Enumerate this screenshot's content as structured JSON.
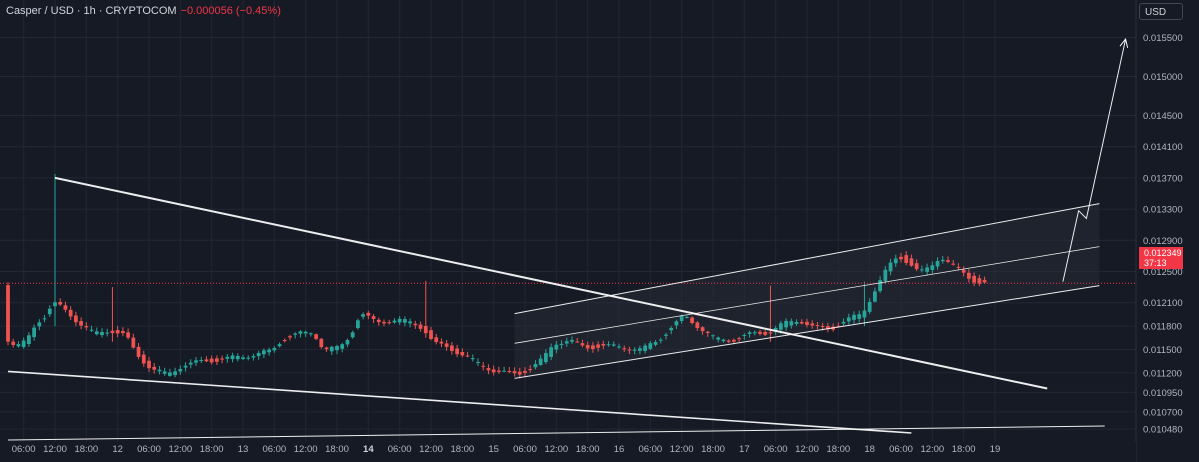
{
  "header": {
    "symbol": "Casper / USD",
    "interval": "1h",
    "exchange": "CRYPTOCOM",
    "change": "−0.000056 (−0.45%)"
  },
  "currency_label": "USD",
  "last_price": {
    "price": "0.012349",
    "countdown": "37:13"
  },
  "colors": {
    "background": "#161a25",
    "up": "#26a69a",
    "down": "#ef5350",
    "grid": "#232734",
    "axis_text": "#b2b5be",
    "drawing": "#ffffff",
    "price_line": "#f23645",
    "channel_fill": "#2a2e39"
  },
  "chart_data": {
    "type": "candlestick",
    "title": "",
    "y_axis": {
      "position": "right",
      "range": [
        0.01034,
        0.01575
      ],
      "ticks": [
        "0.015500",
        "0.015000",
        "0.014500",
        "0.014100",
        "0.013700",
        "0.013300",
        "0.012900",
        "0.012500",
        "0.012100",
        "0.011800",
        "0.011500",
        "0.011200",
        "0.010950",
        "0.010700",
        "0.010480"
      ]
    },
    "x_axis": {
      "range": [
        "10 03:00",
        "19 03:00"
      ],
      "ticks": [
        {
          "t": "10 06:00",
          "label": "06:00"
        },
        {
          "t": "10 12:00",
          "label": "12:00"
        },
        {
          "t": "10 18:00",
          "label": "18:00"
        },
        {
          "t": "11 00:00",
          "label": "12"
        },
        {
          "t": "11 06:00",
          "label": "06:00"
        },
        {
          "t": "11 12:00",
          "label": "12:00"
        },
        {
          "t": "11 18:00",
          "label": "18:00"
        },
        {
          "t": "12 00:00",
          "label": "13"
        },
        {
          "t": "12 06:00",
          "label": "06:00"
        },
        {
          "t": "12 12:00",
          "label": "12:00"
        },
        {
          "t": "12 18:00",
          "label": "18:00"
        },
        {
          "t": "13 00:00",
          "label": "14",
          "bold": true
        },
        {
          "t": "13 06:00",
          "label": "06:00"
        },
        {
          "t": "13 12:00",
          "label": "12:00"
        },
        {
          "t": "13 18:00",
          "label": "18:00"
        },
        {
          "t": "14 00:00",
          "label": "15"
        },
        {
          "t": "14 06:00",
          "label": "06:00"
        },
        {
          "t": "14 12:00",
          "label": "12:00"
        },
        {
          "t": "14 18:00",
          "label": "18:00"
        },
        {
          "t": "15 00:00",
          "label": "16"
        },
        {
          "t": "15 06:00",
          "label": "06:00"
        },
        {
          "t": "15 12:00",
          "label": "12:00"
        },
        {
          "t": "15 18:00",
          "label": "18:00"
        },
        {
          "t": "16 00:00",
          "label": "17"
        },
        {
          "t": "16 06:00",
          "label": "06:00"
        },
        {
          "t": "16 12:00",
          "label": "12:00"
        },
        {
          "t": "16 18:00",
          "label": "18:00"
        },
        {
          "t": "17 00:00",
          "label": "18"
        },
        {
          "t": "17 06:00",
          "label": "06:00"
        },
        {
          "t": "17 12:00",
          "label": "12:00"
        },
        {
          "t": "17 18:00",
          "label": "18:00"
        },
        {
          "t": "18 00:00",
          "label": "19"
        }
      ]
    },
    "grid": true,
    "last_price_line": 0.012349,
    "price_path": [
      [
        "10 03:00",
        0.01166
      ],
      [
        "10 05:00",
        0.01154
      ],
      [
        "10 07:00",
        0.0116
      ],
      [
        "10 09:00",
        0.01185
      ],
      [
        "10 11:00",
        0.01195
      ],
      [
        "10 12:00",
        0.0121
      ],
      [
        "10 14:00",
        0.01203
      ],
      [
        "10 17:00",
        0.01185
      ],
      [
        "10 20:00",
        0.0117
      ],
      [
        "10 23:00",
        0.01175
      ],
      [
        "11 02:00",
        0.01168
      ],
      [
        "11 04:00",
        0.01145
      ],
      [
        "11 07:00",
        0.01125
      ],
      [
        "11 10:00",
        0.01118
      ],
      [
        "11 13:00",
        0.0113
      ],
      [
        "11 17:00",
        0.01135
      ],
      [
        "11 21:00",
        0.01138
      ],
      [
        "12 02:00",
        0.01143
      ],
      [
        "12 06:00",
        0.01148
      ],
      [
        "12 08:00",
        0.01163
      ],
      [
        "12 11:00",
        0.0117
      ],
      [
        "12 14:00",
        0.01172
      ],
      [
        "12 16:00",
        0.0115
      ],
      [
        "12 19:00",
        0.01152
      ],
      [
        "12 21:00",
        0.01168
      ],
      [
        "12 23:00",
        0.01196
      ],
      [
        "13 02:00",
        0.01185
      ],
      [
        "13 06:00",
        0.01188
      ],
      [
        "13 09:00",
        0.01184
      ],
      [
        "13 11:00",
        0.01178
      ],
      [
        "13 13:00",
        0.01158
      ],
      [
        "13 16:00",
        0.01152
      ],
      [
        "13 19:00",
        0.01142
      ],
      [
        "13 22:00",
        0.0113
      ],
      [
        "14 01:00",
        0.01122
      ],
      [
        "14 03:00",
        0.0112
      ],
      [
        "14 05:00",
        0.01118
      ],
      [
        "14 08:00",
        0.01128
      ],
      [
        "14 10:00",
        0.01138
      ],
      [
        "14 12:00",
        0.01158
      ],
      [
        "14 15:00",
        0.01162
      ],
      [
        "14 18:00",
        0.01152
      ],
      [
        "14 21:00",
        0.01155
      ],
      [
        "15 01:00",
        0.01153
      ],
      [
        "15 05:00",
        0.0115
      ],
      [
        "15 08:00",
        0.01162
      ],
      [
        "15 10:00",
        0.01175
      ],
      [
        "15 13:00",
        0.01193
      ],
      [
        "15 16:00",
        0.01178
      ],
      [
        "15 19:00",
        0.01163
      ],
      [
        "15 22:00",
        0.01162
      ],
      [
        "16 02:00",
        0.0117
      ],
      [
        "16 05:00",
        0.01172
      ],
      [
        "16 08:00",
        0.01183
      ],
      [
        "16 11:00",
        0.01188
      ],
      [
        "16 14:00",
        0.01178
      ],
      [
        "16 17:00",
        0.01176
      ],
      [
        "16 20:00",
        0.01188
      ],
      [
        "16 23:00",
        0.01195
      ],
      [
        "17 02:00",
        0.01233
      ],
      [
        "17 04:00",
        0.01255
      ],
      [
        "17 06:00",
        0.0127
      ],
      [
        "17 08:00",
        0.01262
      ],
      [
        "17 10:00",
        0.01248
      ],
      [
        "17 12:00",
        0.01255
      ],
      [
        "17 14:00",
        0.0127
      ],
      [
        "17 16:00",
        0.0126
      ],
      [
        "17 18:00",
        0.0125
      ],
      [
        "17 20:00",
        0.0124
      ],
      [
        "17 22:00",
        0.01235
      ]
    ],
    "spikes": [
      {
        "t": "10 12:00",
        "high": 0.01375,
        "low": 0.0118
      },
      {
        "t": "10 23:00",
        "high": 0.0123,
        "low": 0.0116
      },
      {
        "t": "13 11:00",
        "high": 0.01238,
        "low": 0.01165
      },
      {
        "t": "16 05:00",
        "high": 0.01232,
        "low": 0.0116
      },
      {
        "t": "16 23:00",
        "high": 0.01237,
        "low": 0.0118
      }
    ],
    "drawings": [
      {
        "name": "descending-trendline",
        "width": 2,
        "points": [
          [
            "10 12:00",
            0.0137
          ],
          [
            "18 10:00",
            0.011
          ]
        ]
      },
      {
        "name": "lower-wedge-line",
        "width": 1.6,
        "points": [
          [
            "10 03:00",
            0.01122
          ],
          [
            "17 08:00",
            0.01043
          ]
        ]
      },
      {
        "name": "bottom-baseline",
        "width": 1,
        "points": [
          [
            "10 03:00",
            0.01034
          ],
          [
            "18 21:00",
            0.01052
          ]
        ]
      },
      {
        "name": "channel-upper",
        "width": 1,
        "points": [
          [
            "14 04:00",
            0.01196
          ],
          [
            "18 20:00",
            0.01337
          ]
        ]
      },
      {
        "name": "channel-mid",
        "width": 0.8,
        "points": [
          [
            "14 04:00",
            0.01158
          ],
          [
            "18 20:00",
            0.01282
          ]
        ]
      },
      {
        "name": "channel-lower",
        "width": 1,
        "points": [
          [
            "14 04:00",
            0.01113
          ],
          [
            "18 20:00",
            0.01232
          ]
        ]
      },
      {
        "name": "projection-arrow",
        "width": 1,
        "arrow": true,
        "points": [
          [
            "18 13:00",
            0.01237
          ],
          [
            "18 16:00",
            0.01328
          ],
          [
            "18 17:30",
            0.01318
          ],
          [
            "19 01:00",
            0.01548
          ]
        ]
      }
    ],
    "channel_box": [
      [
        "14 04:00",
        0.01196
      ],
      [
        "18 20:00",
        0.01337
      ],
      [
        "18 20:00",
        0.01232
      ],
      [
        "14 04:00",
        0.01113
      ]
    ]
  }
}
